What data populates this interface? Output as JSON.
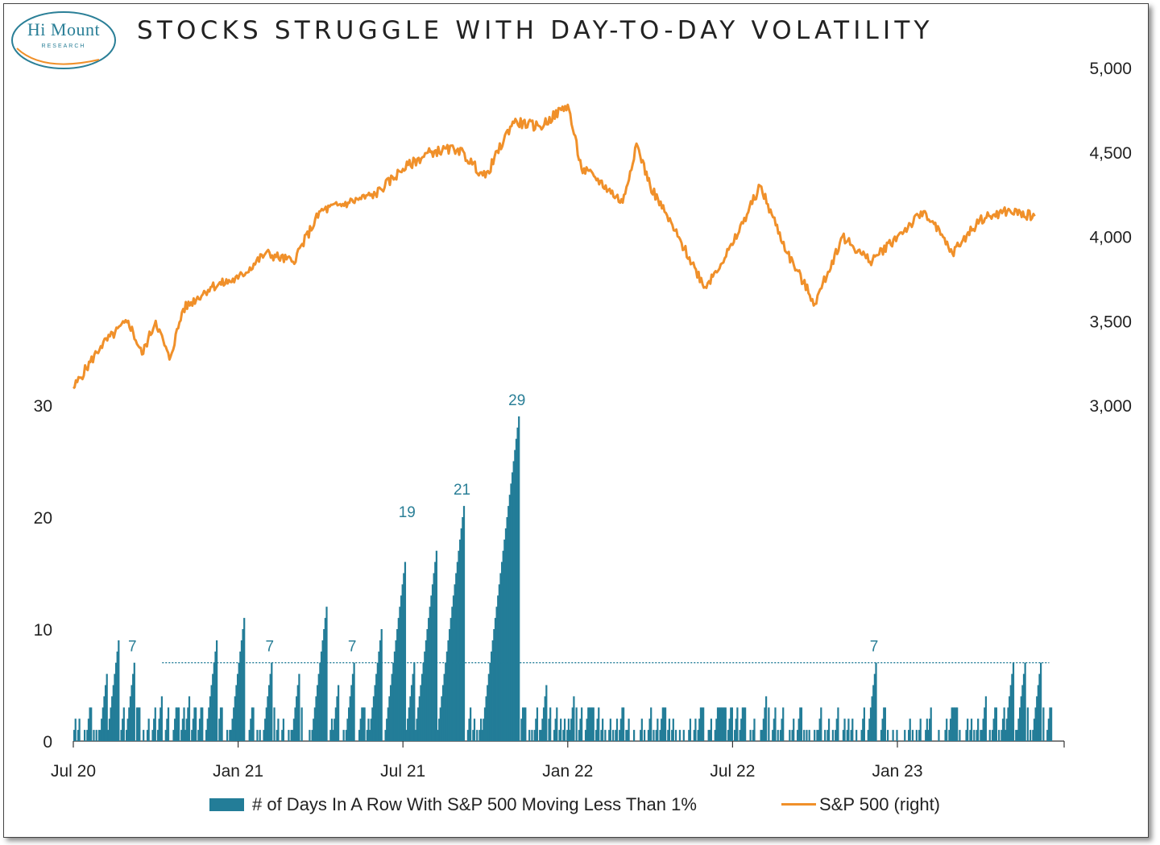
{
  "title": "STOCKS STRUGGLE WITH DAY-TO-DAY VOLATILITY",
  "logo": {
    "name": "Hi Mount",
    "sub": "RESEARCH"
  },
  "colors": {
    "bars": "#237d98",
    "line": "#f0902a",
    "labels": "#2a7f97",
    "reference": "#237d98"
  },
  "legend": {
    "bars": "# of Days In A Row With S&P 500 Moving Less Than 1%",
    "line": "S&P 500 (right)"
  },
  "chart_data": {
    "type": "bar+line",
    "x_axis": {
      "ticks": [
        "Jul 20",
        "Jan 21",
        "Jul 21",
        "Jan 22",
        "Jul 22",
        "Jan 23"
      ]
    },
    "left_axis": {
      "range": [
        0,
        30
      ],
      "ticks": [
        "0",
        "10",
        "20",
        "30"
      ]
    },
    "right_axis": {
      "range": [
        3000,
        5000
      ],
      "ticks": [
        "3,000",
        "3,500",
        "4,000",
        "4,500",
        "5,000"
      ]
    },
    "reference_line": {
      "value": 7,
      "from": "Oct 20",
      "to": "Jun 23",
      "style": "dotted"
    },
    "bar_series": {
      "name": "# of Days In A Row With S&P 500 Moving Less Than 1%",
      "peaks": [
        {
          "date": "Jul 20",
          "v": 2
        },
        {
          "date": "Aug 20",
          "v": 6
        },
        {
          "date": "Aug 20",
          "v": 9
        },
        {
          "date": "Sep 20",
          "v": 7
        },
        {
          "date": "Oct 20",
          "v": 4
        },
        {
          "date": "Nov 20",
          "v": 4
        },
        {
          "date": "Dec 20",
          "v": 9
        },
        {
          "date": "Jan 21",
          "v": 11
        },
        {
          "date": "Feb 21",
          "v": 7
        },
        {
          "date": "Mar 21",
          "v": 6
        },
        {
          "date": "Apr 21",
          "v": 12
        },
        {
          "date": "Apr 21",
          "v": 5
        },
        {
          "date": "May 21",
          "v": 7
        },
        {
          "date": "Jun 21",
          "v": 10
        },
        {
          "date": "Jul 21",
          "v": 19
        },
        {
          "date": "Jul 21",
          "v": 12
        },
        {
          "date": "Aug 21",
          "v": 17
        },
        {
          "date": "Sep 21",
          "v": 21
        },
        {
          "date": "Oct 21",
          "v": 3
        },
        {
          "date": "Nov 21",
          "v": 29
        },
        {
          "date": "Dec 21",
          "v": 5
        },
        {
          "date": "Jan 22",
          "v": 4
        },
        {
          "date": "Mar 22",
          "v": 2
        },
        {
          "date": "Jun 22",
          "v": 2
        },
        {
          "date": "Aug 22",
          "v": 4
        },
        {
          "date": "Oct 22",
          "v": 3
        },
        {
          "date": "Dec 22",
          "v": 7
        },
        {
          "date": "Feb 23",
          "v": 3
        },
        {
          "date": "Apr 23",
          "v": 4
        },
        {
          "date": "May 23",
          "v": 7
        },
        {
          "date": "May 23",
          "v": 7
        },
        {
          "date": "Jun 23",
          "v": 7
        }
      ],
      "labels": [
        "19",
        "21",
        "29",
        "7",
        "7",
        "7",
        "7"
      ]
    },
    "line_series": {
      "name": "S&P 500 (right)",
      "points": [
        [
          "Jul 20",
          3100
        ],
        [
          "Aug 20",
          3350
        ],
        [
          "Sep 20",
          3500
        ],
        [
          "Sep 20",
          3300
        ],
        [
          "Oct 20",
          3500
        ],
        [
          "Oct 20",
          3270
        ],
        [
          "Nov 20",
          3570
        ],
        [
          "Dec 20",
          3700
        ],
        [
          "Jan 21",
          3750
        ],
        [
          "Feb 21",
          3900
        ],
        [
          "Mar 21",
          3850
        ],
        [
          "Apr 21",
          4150
        ],
        [
          "May 21",
          4200
        ],
        [
          "Jun 21",
          4250
        ],
        [
          "Jul 21",
          4400
        ],
        [
          "Aug 21",
          4500
        ],
        [
          "Sep 21",
          4520
        ],
        [
          "Oct 21",
          4350
        ],
        [
          "Nov 21",
          4680
        ],
        [
          "Dec 21",
          4650
        ],
        [
          "Jan 22",
          4780
        ],
        [
          "Jan 22",
          4400
        ],
        [
          "Feb 22",
          4350
        ],
        [
          "Mar 22",
          4200
        ],
        [
          "Mar 22",
          4550
        ],
        [
          "Apr 22",
          4300
        ],
        [
          "May 22",
          4000
        ],
        [
          "Jun 22",
          3700
        ],
        [
          "Jul 22",
          3950
        ],
        [
          "Aug 22",
          4300
        ],
        [
          "Sep 22",
          3900
        ],
        [
          "Oct 22",
          3600
        ],
        [
          "Nov 22",
          4000
        ],
        [
          "Dec 22",
          3850
        ],
        [
          "Jan 23",
          4000
        ],
        [
          "Feb 23",
          4150
        ],
        [
          "Mar 23",
          3900
        ],
        [
          "Apr 23",
          4100
        ],
        [
          "May 23",
          4150
        ],
        [
          "Jun 23",
          4120
        ]
      ]
    }
  }
}
